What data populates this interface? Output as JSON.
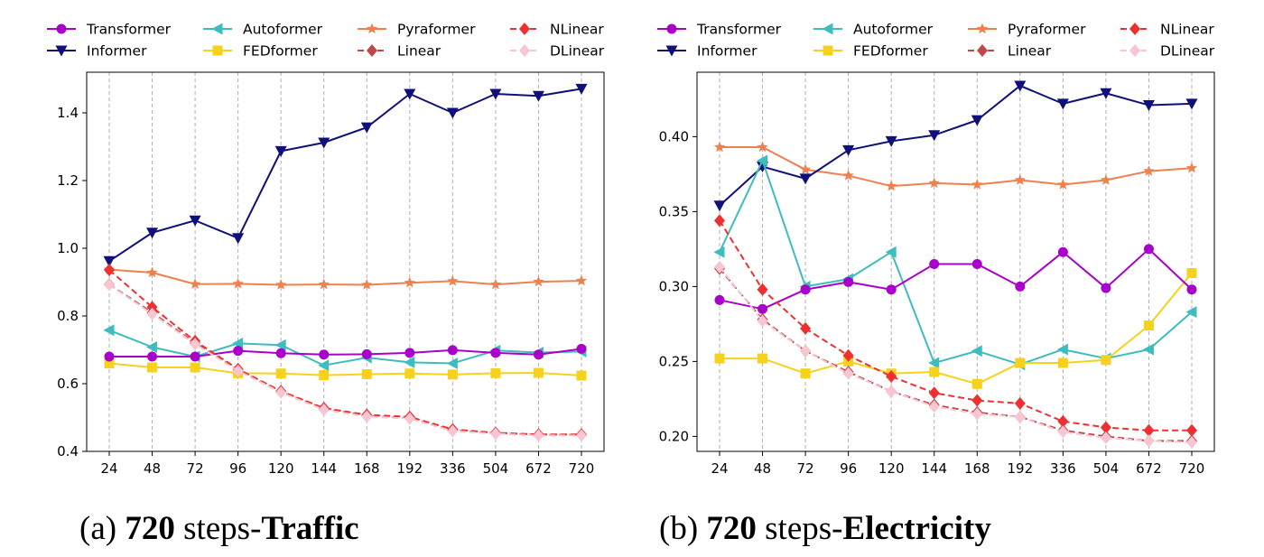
{
  "series_styles": [
    {
      "name": "Transformer",
      "color": "#aa00cc",
      "marker": "circle",
      "dash": false
    },
    {
      "name": "Informer",
      "color": "#10107a",
      "marker": "tri-down",
      "dash": false
    },
    {
      "name": "Autoformer",
      "color": "#3dbdbd",
      "marker": "tri-left",
      "dash": false
    },
    {
      "name": "FEDformer",
      "color": "#f6d21c",
      "marker": "square",
      "dash": false
    },
    {
      "name": "Pyraformer",
      "color": "#ef8050",
      "marker": "star",
      "dash": false
    },
    {
      "name": "Linear",
      "color": "#c04848",
      "marker": "diamond",
      "dash": true
    },
    {
      "name": "NLinear",
      "color": "#ee3030",
      "marker": "diamond",
      "dash": true
    },
    {
      "name": "DLinear",
      "color": "#f8c6d2",
      "marker": "diamond",
      "dash": true
    }
  ],
  "chart_data": [
    {
      "type": "line",
      "caption_prefix": "(a)",
      "caption_bold1": "720",
      "caption_mid": "steps-",
      "caption_bold2": "Traffic",
      "categories": [
        "24",
        "48",
        "72",
        "96",
        "120",
        "144",
        "168",
        "192",
        "336",
        "504",
        "672",
        "720"
      ],
      "ylim": [
        0.4,
        1.52
      ],
      "yticks": [
        "0.4",
        "0.6",
        "0.8",
        "1.0",
        "1.2",
        "1.4"
      ],
      "ytick_values": [
        0.4,
        0.6,
        0.8,
        1.0,
        1.2,
        1.4
      ],
      "grid": "vertical-dashed",
      "legend": "top",
      "series": [
        {
          "name": "Transformer",
          "values": [
            0.68,
            0.68,
            0.68,
            0.697,
            0.69,
            0.686,
            0.687,
            0.691,
            0.699,
            0.691,
            0.686,
            0.703
          ]
        },
        {
          "name": "Informer",
          "values": [
            0.962,
            1.046,
            1.082,
            1.03,
            1.287,
            1.312,
            1.357,
            1.456,
            1.4,
            1.456,
            1.45,
            1.471
          ]
        },
        {
          "name": "Autoformer",
          "values": [
            0.758,
            0.708,
            0.68,
            0.719,
            0.714,
            0.654,
            0.677,
            0.663,
            0.66,
            0.698,
            0.692,
            0.695
          ]
        },
        {
          "name": "FEDformer",
          "values": [
            0.66,
            0.648,
            0.648,
            0.631,
            0.63,
            0.625,
            0.628,
            0.63,
            0.627,
            0.631,
            0.632,
            0.624
          ]
        },
        {
          "name": "Pyraformer",
          "values": [
            0.937,
            0.928,
            0.894,
            0.895,
            0.892,
            0.893,
            0.892,
            0.898,
            0.903,
            0.893,
            0.901,
            0.904
          ]
        },
        {
          "name": "Linear",
          "values": [
            0.893,
            0.81,
            0.72,
            0.64,
            0.576,
            0.526,
            0.505,
            0.498,
            0.462,
            0.454,
            0.449,
            0.449
          ]
        },
        {
          "name": "NLinear",
          "values": [
            0.936,
            0.826,
            0.726,
            0.643,
            0.578,
            0.528,
            0.508,
            0.502,
            0.465,
            0.455,
            0.45,
            0.45
          ]
        },
        {
          "name": "DLinear",
          "values": [
            0.892,
            0.806,
            0.717,
            0.638,
            0.574,
            0.523,
            0.503,
            0.497,
            0.46,
            0.452,
            0.447,
            0.447
          ]
        }
      ]
    },
    {
      "type": "line",
      "caption_prefix": "(b)",
      "caption_bold1": "720",
      "caption_mid": "steps-",
      "caption_bold2": "Electricity",
      "categories": [
        "24",
        "48",
        "72",
        "96",
        "120",
        "144",
        "168",
        "192",
        "336",
        "504",
        "672",
        "720"
      ],
      "ylim": [
        0.19,
        0.443
      ],
      "yticks": [
        "0.20",
        "0.25",
        "0.30",
        "0.35",
        "0.40"
      ],
      "ytick_values": [
        0.2,
        0.25,
        0.3,
        0.35,
        0.4
      ],
      "grid": "vertical-dashed",
      "legend": "top",
      "series": [
        {
          "name": "Transformer",
          "values": [
            0.291,
            0.285,
            0.298,
            0.303,
            0.298,
            0.315,
            0.315,
            0.3,
            0.323,
            0.299,
            0.325,
            0.298
          ]
        },
        {
          "name": "Informer",
          "values": [
            0.354,
            0.38,
            0.372,
            0.391,
            0.397,
            0.401,
            0.411,
            0.434,
            0.422,
            0.429,
            0.421,
            0.422
          ]
        },
        {
          "name": "Autoformer",
          "values": [
            0.323,
            0.384,
            0.3,
            0.305,
            0.323,
            0.249,
            0.257,
            0.248,
            0.258,
            0.252,
            0.258,
            0.283
          ]
        },
        {
          "name": "FEDformer",
          "values": [
            0.252,
            0.252,
            0.242,
            0.25,
            0.242,
            0.243,
            0.235,
            0.249,
            0.249,
            0.251,
            0.274,
            0.309
          ]
        },
        {
          "name": "Pyraformer",
          "values": [
            0.393,
            0.393,
            0.378,
            0.374,
            0.367,
            0.369,
            0.368,
            0.371,
            0.368,
            0.371,
            0.377,
            0.379
          ]
        },
        {
          "name": "Linear",
          "values": [
            0.312,
            0.278,
            0.257,
            0.243,
            0.23,
            0.221,
            0.216,
            0.213,
            0.204,
            0.2,
            0.197,
            0.197
          ]
        },
        {
          "name": "NLinear",
          "values": [
            0.344,
            0.298,
            0.272,
            0.254,
            0.24,
            0.229,
            0.224,
            0.222,
            0.21,
            0.206,
            0.204,
            0.204
          ]
        },
        {
          "name": "DLinear",
          "values": [
            0.313,
            0.277,
            0.257,
            0.242,
            0.23,
            0.22,
            0.215,
            0.213,
            0.203,
            0.199,
            0.197,
            0.196
          ]
        }
      ]
    }
  ]
}
